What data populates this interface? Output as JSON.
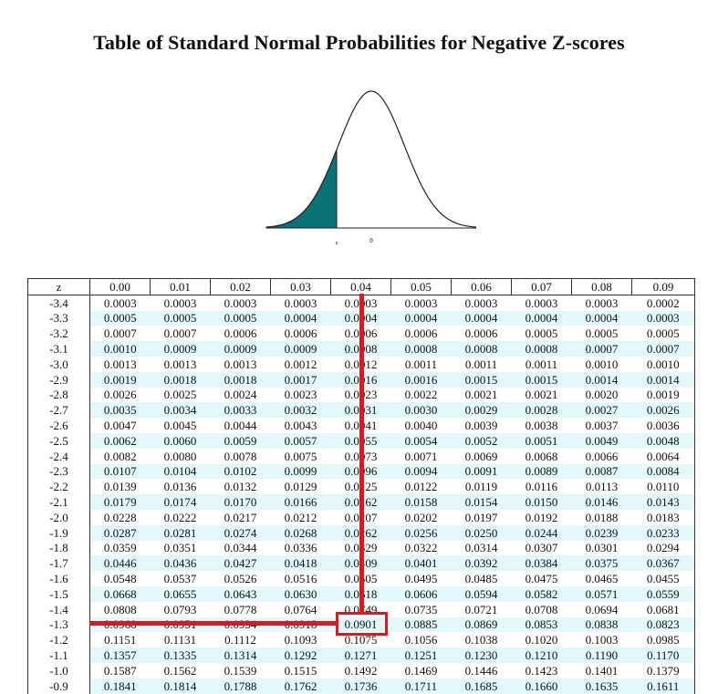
{
  "title": "Table of Standard Normal Probabilities for Negative Z-scores",
  "figure": {
    "z_label": "z",
    "zero_label": "0",
    "fill_color": "#0b7377"
  },
  "table": {
    "headers": [
      "z",
      "0.00",
      "0.01",
      "0.02",
      "0.03",
      "0.04",
      "0.05",
      "0.06",
      "0.07",
      "0.08",
      "0.09"
    ],
    "rows": [
      [
        "-3.4",
        "0.0003",
        "0.0003",
        "0.0003",
        "0.0003",
        "0.0003",
        "0.0003",
        "0.0003",
        "0.0003",
        "0.0003",
        "0.0002"
      ],
      [
        "-3.3",
        "0.0005",
        "0.0005",
        "0.0005",
        "0.0004",
        "0.0004",
        "0.0004",
        "0.0004",
        "0.0004",
        "0.0004",
        "0.0003"
      ],
      [
        "-3.2",
        "0.0007",
        "0.0007",
        "0.0006",
        "0.0006",
        "0.0006",
        "0.0006",
        "0.0006",
        "0.0005",
        "0.0005",
        "0.0005"
      ],
      [
        "-3.1",
        "0.0010",
        "0.0009",
        "0.0009",
        "0.0009",
        "0.0008",
        "0.0008",
        "0.0008",
        "0.0008",
        "0.0007",
        "0.0007"
      ],
      [
        "-3.0",
        "0.0013",
        "0.0013",
        "0.0013",
        "0.0012",
        "0.0012",
        "0.0011",
        "0.0011",
        "0.0011",
        "0.0010",
        "0.0010"
      ],
      [
        "-2.9",
        "0.0019",
        "0.0018",
        "0.0018",
        "0.0017",
        "0.0016",
        "0.0016",
        "0.0015",
        "0.0015",
        "0.0014",
        "0.0014"
      ],
      [
        "-2.8",
        "0.0026",
        "0.0025",
        "0.0024",
        "0.0023",
        "0.0023",
        "0.0022",
        "0.0021",
        "0.0021",
        "0.0020",
        "0.0019"
      ],
      [
        "-2.7",
        "0.0035",
        "0.0034",
        "0.0033",
        "0.0032",
        "0.0031",
        "0.0030",
        "0.0029",
        "0.0028",
        "0.0027",
        "0.0026"
      ],
      [
        "-2.6",
        "0.0047",
        "0.0045",
        "0.0044",
        "0.0043",
        "0.0041",
        "0.0040",
        "0.0039",
        "0.0038",
        "0.0037",
        "0.0036"
      ],
      [
        "-2.5",
        "0.0062",
        "0.0060",
        "0.0059",
        "0.0057",
        "0.0055",
        "0.0054",
        "0.0052",
        "0.0051",
        "0.0049",
        "0.0048"
      ],
      [
        "-2.4",
        "0.0082",
        "0.0080",
        "0.0078",
        "0.0075",
        "0.0073",
        "0.0071",
        "0.0069",
        "0.0068",
        "0.0066",
        "0.0064"
      ],
      [
        "-2.3",
        "0.0107",
        "0.0104",
        "0.0102",
        "0.0099",
        "0.0096",
        "0.0094",
        "0.0091",
        "0.0089",
        "0.0087",
        "0.0084"
      ],
      [
        "-2.2",
        "0.0139",
        "0.0136",
        "0.0132",
        "0.0129",
        "0.0125",
        "0.0122",
        "0.0119",
        "0.0116",
        "0.0113",
        "0.0110"
      ],
      [
        "-2.1",
        "0.0179",
        "0.0174",
        "0.0170",
        "0.0166",
        "0.0162",
        "0.0158",
        "0.0154",
        "0.0150",
        "0.0146",
        "0.0143"
      ],
      [
        "-2.0",
        "0.0228",
        "0.0222",
        "0.0217",
        "0.0212",
        "0.0207",
        "0.0202",
        "0.0197",
        "0.0192",
        "0.0188",
        "0.0183"
      ],
      [
        "-1.9",
        "0.0287",
        "0.0281",
        "0.0274",
        "0.0268",
        "0.0262",
        "0.0256",
        "0.0250",
        "0.0244",
        "0.0239",
        "0.0233"
      ],
      [
        "-1.8",
        "0.0359",
        "0.0351",
        "0.0344",
        "0.0336",
        "0.0329",
        "0.0322",
        "0.0314",
        "0.0307",
        "0.0301",
        "0.0294"
      ],
      [
        "-1.7",
        "0.0446",
        "0.0436",
        "0.0427",
        "0.0418",
        "0.0409",
        "0.0401",
        "0.0392",
        "0.0384",
        "0.0375",
        "0.0367"
      ],
      [
        "-1.6",
        "0.0548",
        "0.0537",
        "0.0526",
        "0.0516",
        "0.0505",
        "0.0495",
        "0.0485",
        "0.0475",
        "0.0465",
        "0.0455"
      ],
      [
        "-1.5",
        "0.0668",
        "0.0655",
        "0.0643",
        "0.0630",
        "0.0618",
        "0.0606",
        "0.0594",
        "0.0582",
        "0.0571",
        "0.0559"
      ],
      [
        "-1.4",
        "0.0808",
        "0.0793",
        "0.0778",
        "0.0764",
        "0.0749",
        "0.0735",
        "0.0721",
        "0.0708",
        "0.0694",
        "0.0681"
      ],
      [
        "-1.3",
        "0.0968",
        "0.0951",
        "0.0934",
        "0.0918",
        "0.0901",
        "0.0885",
        "0.0869",
        "0.0853",
        "0.0838",
        "0.0823"
      ],
      [
        "-1.2",
        "0.1151",
        "0.1131",
        "0.1112",
        "0.1093",
        "0.1075",
        "0.1056",
        "0.1038",
        "0.1020",
        "0.1003",
        "0.0985"
      ],
      [
        "-1.1",
        "0.1357",
        "0.1335",
        "0.1314",
        "0.1292",
        "0.1271",
        "0.1251",
        "0.1230",
        "0.1210",
        "0.1190",
        "0.1170"
      ],
      [
        "-1.0",
        "0.1587",
        "0.1562",
        "0.1539",
        "0.1515",
        "0.1492",
        "0.1469",
        "0.1446",
        "0.1423",
        "0.1401",
        "0.1379"
      ],
      [
        "-0.9",
        "0.1841",
        "0.1814",
        "0.1788",
        "0.1762",
        "0.1736",
        "0.1711",
        "0.1685",
        "0.1660",
        "0.1635",
        "0.1611"
      ]
    ]
  },
  "highlight": {
    "row": "-1.3",
    "column": "0.04",
    "value": "0.0901",
    "color": "#d81b23"
  }
}
